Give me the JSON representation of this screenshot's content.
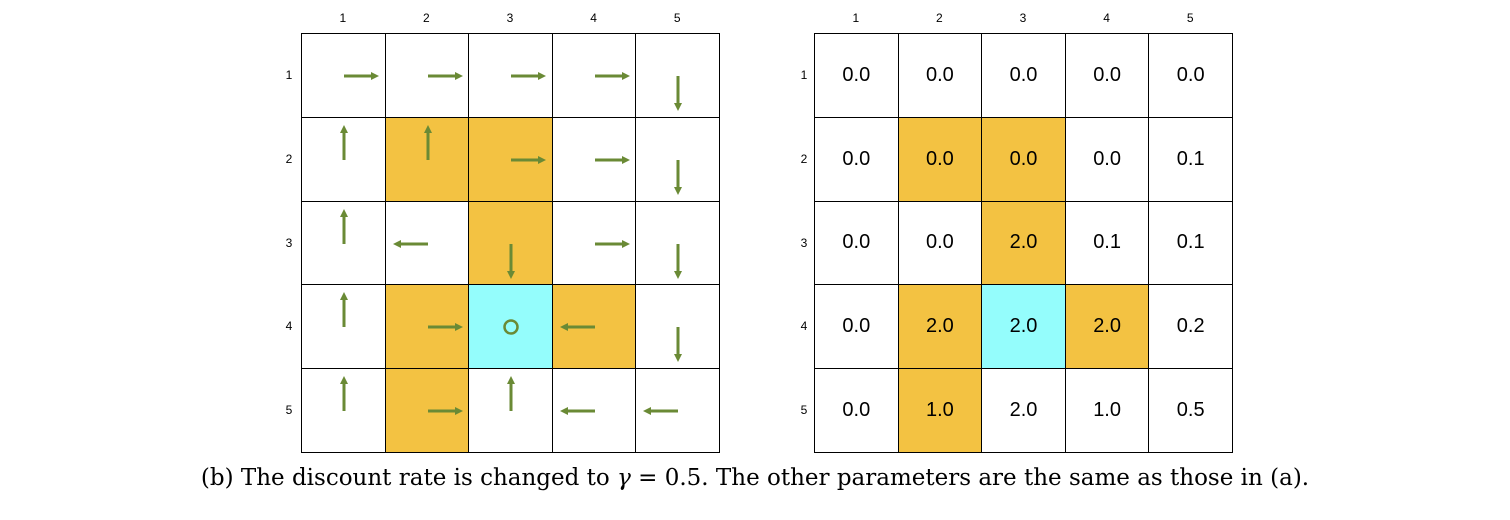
{
  "colors": {
    "target": "#94FDFC",
    "forbidden": "#F3C242",
    "arrow": "#6A8A35",
    "empty": "#FFFFFF"
  },
  "col_labels": [
    "1",
    "2",
    "3",
    "4",
    "5"
  ],
  "row_labels": [
    "1",
    "2",
    "3",
    "4",
    "5"
  ],
  "cell_types": [
    [
      "e",
      "e",
      "e",
      "e",
      "e"
    ],
    [
      "e",
      "f",
      "f",
      "e",
      "e"
    ],
    [
      "e",
      "e",
      "f",
      "e",
      "e"
    ],
    [
      "e",
      "f",
      "t",
      "f",
      "e"
    ],
    [
      "e",
      "f",
      "e",
      "e",
      "e"
    ]
  ],
  "policy": [
    [
      "right",
      "right",
      "right",
      "right",
      "down"
    ],
    [
      "up",
      "up",
      "right",
      "right",
      "down"
    ],
    [
      "up",
      "left",
      "down",
      "right",
      "down"
    ],
    [
      "up",
      "right",
      "stay",
      "left",
      "down"
    ],
    [
      "up",
      "right",
      "up",
      "left",
      "left"
    ]
  ],
  "values": [
    [
      "0.0",
      "0.0",
      "0.0",
      "0.0",
      "0.0"
    ],
    [
      "0.0",
      "0.0",
      "0.0",
      "0.0",
      "0.1"
    ],
    [
      "0.0",
      "0.0",
      "2.0",
      "0.1",
      "0.1"
    ],
    [
      "0.0",
      "2.0",
      "2.0",
      "2.0",
      "0.2"
    ],
    [
      "0.0",
      "1.0",
      "2.0",
      "1.0",
      "0.5"
    ]
  ],
  "caption": {
    "prefix": "(b) The discount rate is changed to ",
    "symbol": "γ",
    "suffix": " = 0.5. The other parameters are the same as those in (a)."
  }
}
